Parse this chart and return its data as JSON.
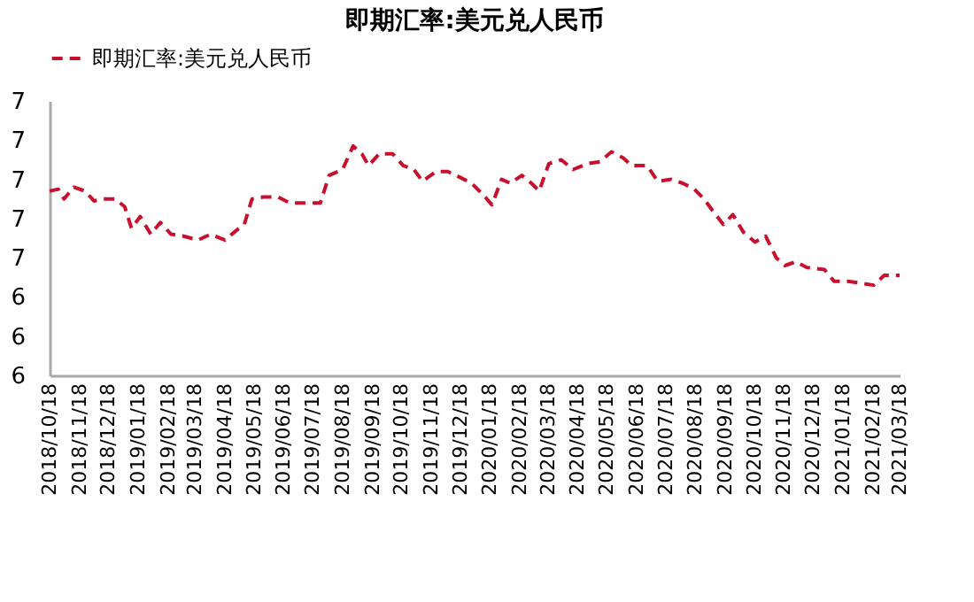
{
  "chart_data": {
    "type": "line",
    "title": "即期汇率:美元兑人民币",
    "x": [
      "2018-10-18",
      "2018-10-27",
      "2018-11-02",
      "2018-11-12",
      "2018-11-24",
      "2018-12-03",
      "2018-12-13",
      "2018-12-25",
      "2019-01-04",
      "2019-01-11",
      "2019-01-20",
      "2019-01-31",
      "2019-02-10",
      "2019-02-21",
      "2019-03-06",
      "2019-03-21",
      "2019-04-03",
      "2019-04-18",
      "2019-04-30",
      "2019-05-08",
      "2019-05-16",
      "2019-05-28",
      "2019-06-12",
      "2019-06-24",
      "2019-07-07",
      "2019-07-26",
      "2019-08-04",
      "2019-08-18",
      "2019-08-29",
      "2019-09-07",
      "2019-09-14",
      "2019-09-25",
      "2019-10-09",
      "2019-10-20",
      "2019-10-31",
      "2019-11-09",
      "2019-11-23",
      "2019-12-05",
      "2019-12-18",
      "2019-12-30",
      "2020-01-11",
      "2020-01-20",
      "2020-01-30",
      "2020-02-08",
      "2020-02-20",
      "2020-03-01",
      "2020-03-09",
      "2020-03-19",
      "2020-04-01",
      "2020-04-13",
      "2020-04-28",
      "2020-05-11",
      "2020-05-23",
      "2020-06-04",
      "2020-06-13",
      "2020-06-29",
      "2020-07-10",
      "2020-07-24",
      "2020-08-05",
      "2020-08-17",
      "2020-08-27",
      "2020-09-05",
      "2020-09-16",
      "2020-09-26",
      "2020-10-07",
      "2020-10-19",
      "2020-10-30",
      "2020-11-10",
      "2020-11-19",
      "2020-11-30",
      "2020-12-12",
      "2020-12-30",
      "2021-01-09",
      "2021-01-23",
      "2021-02-06",
      "2021-02-19",
      "2021-03-02",
      "2021-03-18"
    ],
    "series": [
      {
        "name": "即期汇率:美元兑人民币",
        "color": "#c8102e",
        "line_style": "dashed",
        "values": [
          6.94,
          6.95,
          6.9,
          6.96,
          6.94,
          6.89,
          6.9,
          6.9,
          6.86,
          6.75,
          6.81,
          6.72,
          6.78,
          6.72,
          6.71,
          6.69,
          6.72,
          6.69,
          6.74,
          6.77,
          6.9,
          6.91,
          6.91,
          6.88,
          6.88,
          6.88,
          7.02,
          7.05,
          7.17,
          7.13,
          7.07,
          7.13,
          7.13,
          7.07,
          7.05,
          6.99,
          7.04,
          7.04,
          7.01,
          6.98,
          6.92,
          6.87,
          7.0,
          6.98,
          7.02,
          6.98,
          6.94,
          7.08,
          7.1,
          7.05,
          7.08,
          7.09,
          7.14,
          7.11,
          7.07,
          7.07,
          6.99,
          7.0,
          6.98,
          6.95,
          6.9,
          6.84,
          6.77,
          6.82,
          6.73,
          6.68,
          6.71,
          6.6,
          6.56,
          6.58,
          6.55,
          6.54,
          6.48,
          6.48,
          6.47,
          6.46,
          6.51,
          6.51
        ]
      }
    ],
    "ylim": [
      6.0,
      7.4
    ],
    "yticks": [
      {
        "value": 6.0,
        "label": "6"
      },
      {
        "value": 6.2,
        "label": "6"
      },
      {
        "value": 6.4,
        "label": "6"
      },
      {
        "value": 6.6,
        "label": "7"
      },
      {
        "value": 6.8,
        "label": "7"
      },
      {
        "value": 7.0,
        "label": "7"
      },
      {
        "value": 7.2,
        "label": "7"
      },
      {
        "value": 7.4,
        "label": "7"
      }
    ],
    "xlim": [
      "2018-10-18",
      "2021-03-18"
    ],
    "xticks": [
      {
        "value": "2018-10-18",
        "label": "2018/10/18"
      },
      {
        "value": "2018-11-18",
        "label": "2018/11/18"
      },
      {
        "value": "2018-12-18",
        "label": "2018/12/18"
      },
      {
        "value": "2019-01-18",
        "label": "2019/01/18"
      },
      {
        "value": "2019-02-18",
        "label": "2019/02/18"
      },
      {
        "value": "2019-03-18",
        "label": "2019/03/18"
      },
      {
        "value": "2019-04-18",
        "label": "2019/04/18"
      },
      {
        "value": "2019-05-18",
        "label": "2019/05/18"
      },
      {
        "value": "2019-06-18",
        "label": "2019/06/18"
      },
      {
        "value": "2019-07-18",
        "label": "2019/07/18"
      },
      {
        "value": "2019-08-18",
        "label": "2019/08/18"
      },
      {
        "value": "2019-09-18",
        "label": "2019/09/18"
      },
      {
        "value": "2019-10-18",
        "label": "2019/10/18"
      },
      {
        "value": "2019-11-18",
        "label": "2019/11/18"
      },
      {
        "value": "2019-12-18",
        "label": "2019/12/18"
      },
      {
        "value": "2020-01-18",
        "label": "2020/01/18"
      },
      {
        "value": "2020-02-18",
        "label": "2020/02/18"
      },
      {
        "value": "2020-03-18",
        "label": "2020/03/18"
      },
      {
        "value": "2020-04-18",
        "label": "2020/04/18"
      },
      {
        "value": "2020-05-18",
        "label": "2020/05/18"
      },
      {
        "value": "2020-06-18",
        "label": "2020/06/18"
      },
      {
        "value": "2020-07-18",
        "label": "2020/07/18"
      },
      {
        "value": "2020-08-18",
        "label": "2020/08/18"
      },
      {
        "value": "2020-09-18",
        "label": "2020/09/18"
      },
      {
        "value": "2020-10-18",
        "label": "2020/10/18"
      },
      {
        "value": "2020-11-18",
        "label": "2020/11/18"
      },
      {
        "value": "2020-12-18",
        "label": "2020/12/18"
      },
      {
        "value": "2021-01-18",
        "label": "2021/01/18"
      },
      {
        "value": "2021-02-18",
        "label": "2021/02/18"
      },
      {
        "value": "2021-03-18",
        "label": "2021/03/18"
      }
    ],
    "legend": "top",
    "grid": false,
    "marker": "none"
  }
}
